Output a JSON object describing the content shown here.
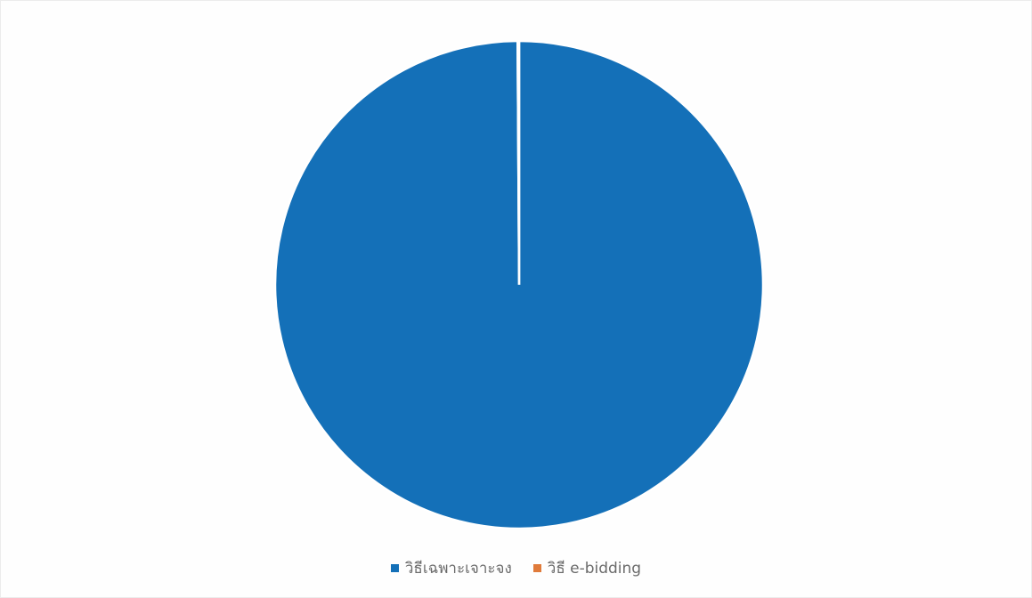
{
  "chart_data": {
    "type": "pie",
    "title": "",
    "start_angle_deg": 90,
    "direction": "clockwise",
    "slices": [
      {
        "label": "วิธีเฉพาะเจาะจง",
        "value": 99.9,
        "color": "#1470b8"
      },
      {
        "label": "วิธี e-bidding",
        "value": 0.1,
        "color": "#e07b3b"
      }
    ],
    "legend_position": "bottom",
    "slice_border_color": "#ffffff"
  }
}
